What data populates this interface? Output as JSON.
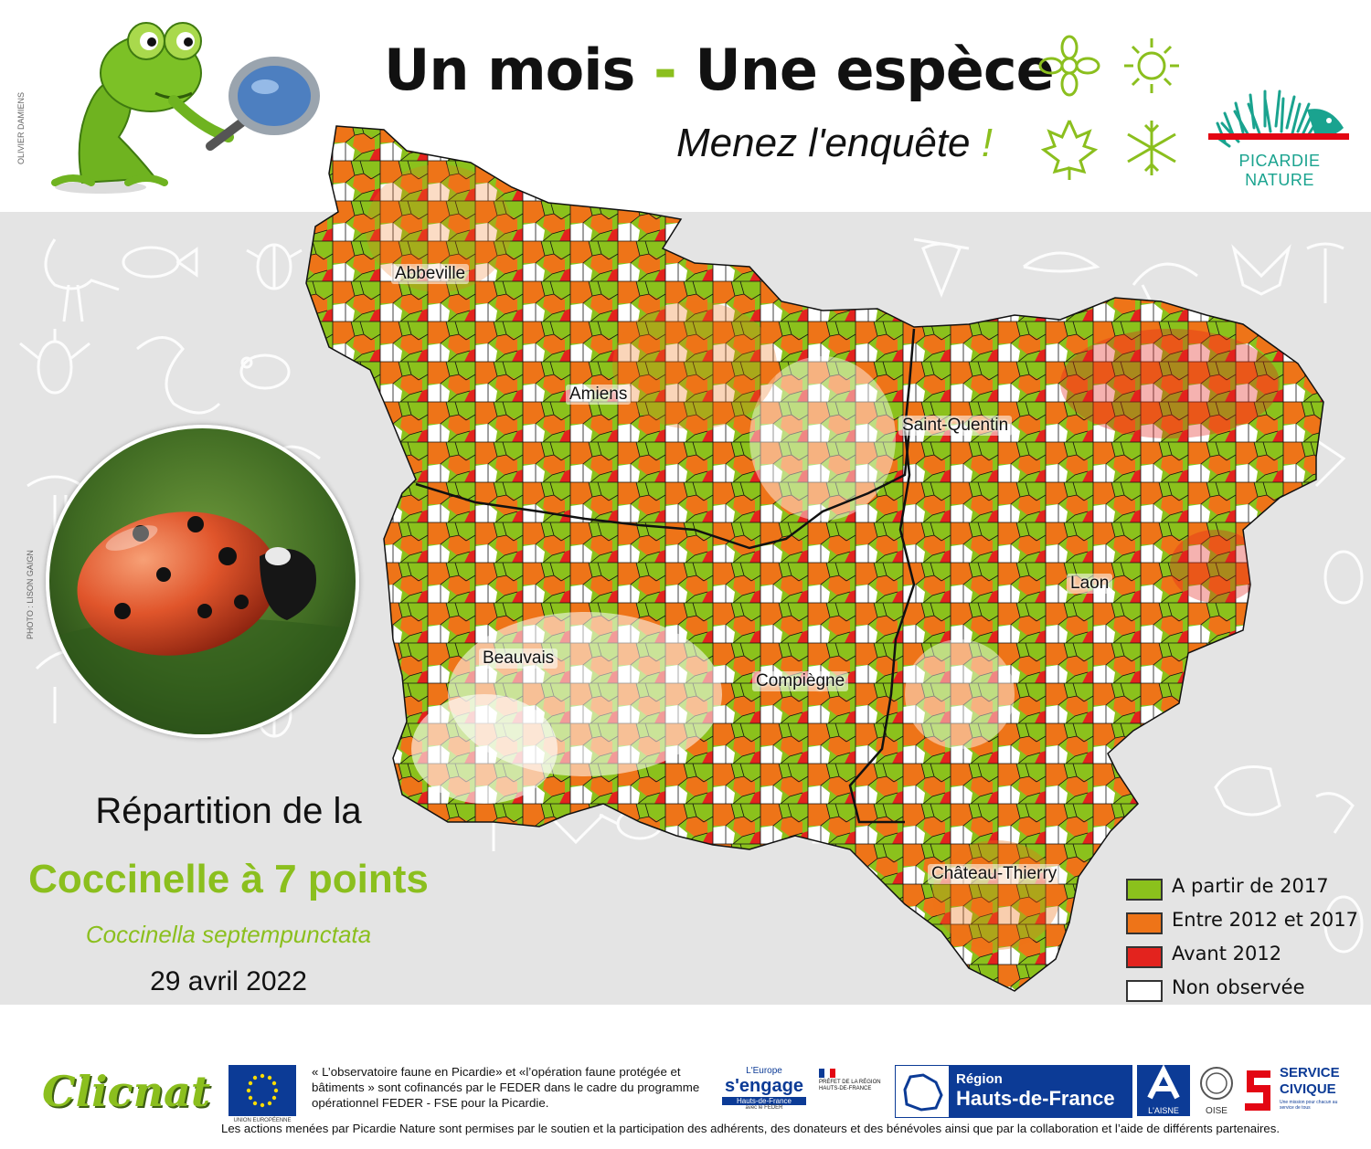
{
  "header": {
    "title_part1": "Un mois",
    "title_dash": "-",
    "title_part2": "Une espèce",
    "subtitle": "Menez l'enquête",
    "subtitle_excl": "!"
  },
  "credits": {
    "illustration": "OLIVIER DAMIENS",
    "photo": "PHOTO : LISON GAIGN"
  },
  "organization": {
    "name": "PICARDIE NATURE"
  },
  "species": {
    "line1": "Répartition de la",
    "common_name": "Coccinelle à 7 points",
    "latin_name": "Coccinella septempunctata",
    "date": "29 avril 2022"
  },
  "cities": [
    {
      "name": "Abbeville"
    },
    {
      "name": "Amiens"
    },
    {
      "name": "Saint-Quentin"
    },
    {
      "name": "Laon"
    },
    {
      "name": "Beauvais"
    },
    {
      "name": "Compiègne"
    },
    {
      "name": "Château-Thierry"
    }
  ],
  "legend": [
    {
      "label": "A partir de 2017",
      "color": "#8bc11c"
    },
    {
      "label": "Entre 2012 et 2017",
      "color": "#ee7418"
    },
    {
      "label": "Avant 2012",
      "color": "#e3231e"
    },
    {
      "label": "Non observée",
      "color": "#ffffff"
    }
  ],
  "colors": {
    "accent_green": "#8bbf1e",
    "picardie_red": "#e30613",
    "picardie_teal": "#1aa38f",
    "region_blue": "#0c3b96"
  },
  "footer": {
    "cofinancing": "« L’observatoire faune en Picardie» et «l’opération faune protégée et bâtiments » sont cofinancés par le FEDER dans le cadre du programme opérationnel FEDER - FSE pour la Picardie.",
    "thanks": "Les actions menées par Picardie Nature sont permises par le soutien et la participation des adhérents, des donateurs et des bénévoles ainsi que par la collaboration et l’aide de différents partenaires.",
    "logos": {
      "clicnat": "Clicnat",
      "eu": "UNION EUROPÉENNE",
      "europe_small": "L'Europe",
      "europe_main": "s'engage",
      "europe_region": "Hauts-de-France",
      "europe_feder": "avec le FEDER",
      "prefet": "PRÉFET DE LA RÉGION HAUTS-DE-FRANCE",
      "region_line1": "Région",
      "region_line2": "Hauts-de-France",
      "aisne": "L'AISNE",
      "oise": "OISE",
      "civique_line1": "SERVICE",
      "civique_line2": "CIVIQUE",
      "civique_tag": "Une mission pour chacun au service de tous"
    }
  }
}
